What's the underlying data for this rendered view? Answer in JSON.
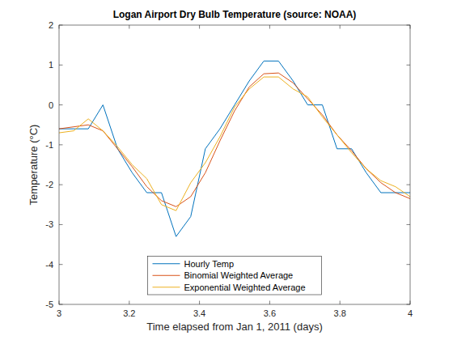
{
  "chart_data": {
    "type": "line",
    "title": "Logan Airport Dry Bulb Temperature (source: NOAA)",
    "x_label": "Time elapsed from Jan 1, 2011 (days)",
    "y_label": "Temperature  (°C)",
    "x": [
      3.0,
      3.0417,
      3.0833,
      3.125,
      3.1667,
      3.2083,
      3.25,
      3.2917,
      3.3333,
      3.375,
      3.4167,
      3.4583,
      3.5,
      3.5417,
      3.5833,
      3.625,
      3.6667,
      3.7083,
      3.75,
      3.7917,
      3.8333,
      3.875,
      3.9167,
      3.9583,
      4.0
    ],
    "series": [
      {
        "name": "Hourly Temp",
        "color": "#0072bd",
        "values": [
          -0.6,
          -0.6,
          -0.6,
          0.0,
          -1.1,
          -1.7,
          -2.2,
          -2.2,
          -3.3,
          -2.8,
          -1.1,
          -0.6,
          0.0,
          0.6,
          1.1,
          1.1,
          0.6,
          0.0,
          0.0,
          -1.1,
          -1.1,
          -1.7,
          -2.2,
          -2.2,
          -2.2
        ]
      },
      {
        "name": "Binomial Weighted Average",
        "color": "#d95319",
        "values": [
          -0.6,
          -0.55,
          -0.5,
          -0.65,
          -1.1,
          -1.55,
          -2.05,
          -2.4,
          -2.55,
          -2.3,
          -1.7,
          -0.9,
          -0.15,
          0.45,
          0.78,
          0.8,
          0.55,
          0.15,
          -0.25,
          -0.75,
          -1.15,
          -1.6,
          -1.95,
          -2.2,
          -2.35
        ]
      },
      {
        "name": "Exponential Weighted Average",
        "color": "#edb120",
        "values": [
          -0.7,
          -0.65,
          -0.35,
          -0.65,
          -1.05,
          -1.5,
          -1.85,
          -2.5,
          -2.65,
          -1.95,
          -1.45,
          -0.8,
          -0.05,
          0.4,
          0.7,
          0.7,
          0.4,
          0.2,
          -0.3,
          -0.75,
          -1.2,
          -1.6,
          -1.9,
          -2.05,
          -2.3
        ]
      }
    ],
    "xlim": [
      3,
      4
    ],
    "xticks": [
      3,
      3.2,
      3.4,
      3.6,
      3.8,
      4
    ],
    "ylim": [
      -5,
      2
    ],
    "yticks": [
      -5,
      -4,
      -3,
      -2,
      -1,
      0,
      1,
      2
    ],
    "legend": "south"
  }
}
